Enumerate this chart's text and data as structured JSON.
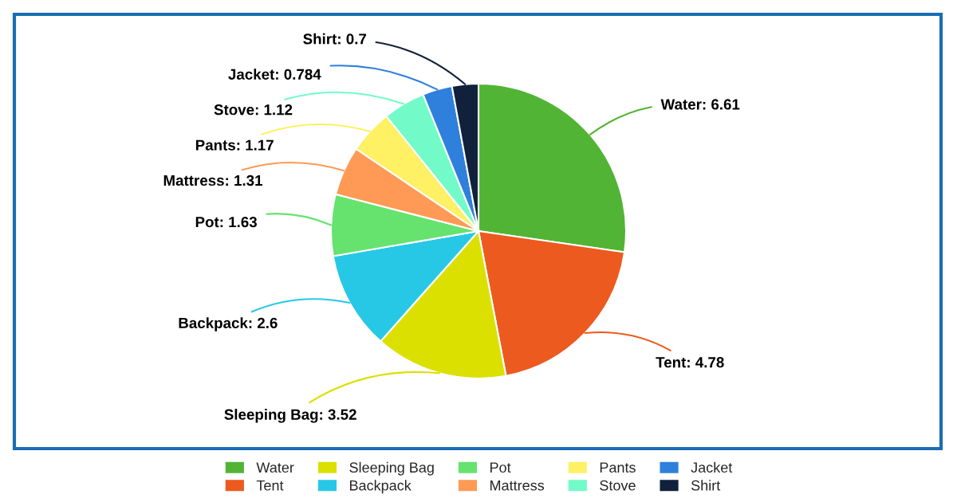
{
  "chart_data": {
    "type": "pie",
    "categories": [
      "Water",
      "Tent",
      "Sleeping Bag",
      "Backpack",
      "Pot",
      "Mattress",
      "Pants",
      "Stove",
      "Jacket",
      "Shirt"
    ],
    "values": [
      6.61,
      4.78,
      3.52,
      2.6,
      1.63,
      1.31,
      1.17,
      1.12,
      0.784,
      0.7
    ],
    "value_labels": [
      "Water: 6.61",
      "Tent: 4.78",
      "Sleeping Bag: 3.52",
      "Backpack: 2.6",
      "Pot: 1.63",
      "Mattress: 1.31",
      "Pants: 1.17",
      "Stove: 1.12",
      "Jacket: 0.784",
      "Shirt: 0.7"
    ],
    "colors": [
      "#52b435",
      "#ec5a1f",
      "#dbe000",
      "#27c8e5",
      "#65e36e",
      "#fe9a55",
      "#fff064",
      "#72fbc9",
      "#2f80dc",
      "#11213b"
    ],
    "legend": "bottom"
  }
}
